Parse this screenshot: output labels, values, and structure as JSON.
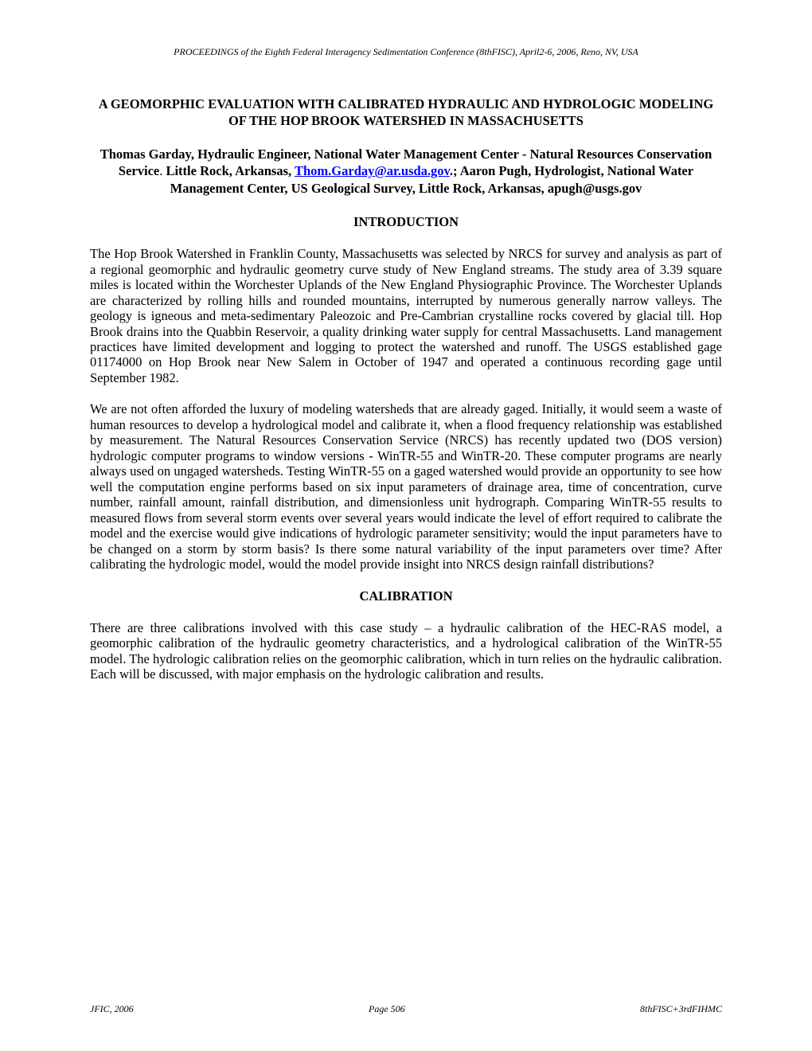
{
  "proceedings_header": "PROCEEDINGS of the Eighth Federal Interagency Sedimentation Conference (8thFISC), April2-6, 2006, Reno, NV, USA",
  "title": "A GEOMORPHIC EVALUATION WITH CALIBRATED HYDRAULIC AND HYDROLOGIC MODELING OF THE HOP BROOK WATERSHED IN MASSACHUSETTS",
  "authors": {
    "line1_prefix": "Thomas Garday, Hydraulic Engineer, National Water Management Center - Natural Resources Conservation Service",
    "line1_period": ". ",
    "line1_location": "Little Rock, Arkansas",
    "line1_separator": ", ",
    "email": "Thom.Garday@ar.usda.gov",
    "line1_suffix": ".; Aaron Pugh, Hydrologist, National Water Management Center, US Geological Survey, Little Rock, Arkansas, apugh@usgs.gov"
  },
  "sections": {
    "introduction": {
      "heading": "INTRODUCTION",
      "para1": "The Hop Brook Watershed in Franklin County, Massachusetts was selected by NRCS for survey and analysis as part of a regional geomorphic and hydraulic geometry curve study of New England streams. The study area of 3.39 square miles is located within the Worchester Uplands of the New England Physiographic Province. The Worchester Uplands are characterized by rolling hills and rounded mountains, interrupted by numerous generally narrow valleys. The geology is igneous and meta-sedimentary Paleozoic and Pre-Cambrian crystalline rocks covered by glacial till. Hop Brook drains into the Quabbin Reservoir, a quality drinking water supply for central Massachusetts. Land management practices have limited development and logging to protect the watershed and runoff. The USGS established gage 01174000 on Hop Brook near New Salem in October of 1947 and operated a continuous recording gage until September 1982.",
      "para2": "We are not often afforded the luxury of modeling watersheds that are already gaged. Initially, it would seem a waste of human resources to develop a hydrological model and calibrate it, when a flood frequency relationship was established by measurement. The Natural Resources Conservation Service (NRCS) has recently updated two (DOS version) hydrologic computer programs to window versions - WinTR-55 and WinTR-20. These computer programs are nearly always used on ungaged watersheds. Testing WinTR-55 on a gaged watershed would provide an opportunity to see how well the computation engine performs based on six input parameters of drainage area, time of concentration, curve number, rainfall amount, rainfall distribution, and dimensionless unit hydrograph. Comparing WinTR-55 results to measured flows from several storm events over several years would indicate the level of effort required to calibrate the model and the exercise would give indications of hydrologic parameter sensitivity; would the input parameters have to be changed on a storm by storm basis? Is there some natural variability of the input parameters over time? After calibrating the hydrologic model, would the model provide insight into NRCS design rainfall distributions?"
    },
    "calibration": {
      "heading": "CALIBRATION",
      "para1": "There are three calibrations involved with this case study – a hydraulic calibration of the HEC-RAS model, a geomorphic calibration of the hydraulic geometry characteristics, and a hydrological calibration of the WinTR-55 model.  The hydrologic calibration relies on the geomorphic calibration, which in turn relies on the hydraulic calibration. Each will be discussed, with major emphasis on the hydrologic calibration and results."
    }
  },
  "footer": {
    "left": "JFIC, 2006",
    "center": "Page 506",
    "right": "8thFISC+3rdFIHMC"
  }
}
